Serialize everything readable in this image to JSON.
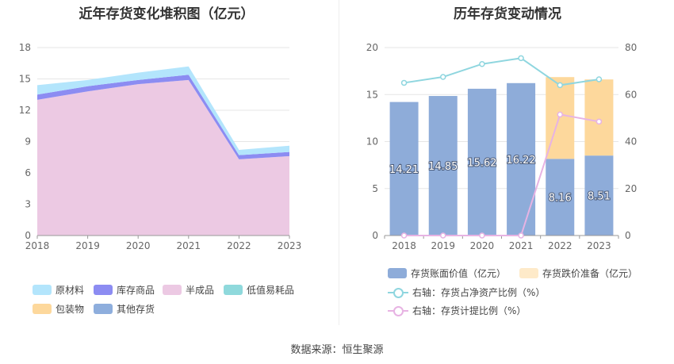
{
  "footer": {
    "source": "数据来源：恒生聚源"
  },
  "colors": {
    "raw_material": "#b3e5fc",
    "inventory_goods": "#8c8cf2",
    "semi_finished": "#ecc9e3",
    "low_value": "#8fd9dc",
    "packaging": "#fdd89c",
    "other_inventory": "#8eaedd",
    "book_value_bar": "#8eacd9",
    "impairment_bar": "#fdd89c",
    "ratio_line": "#8fd6df",
    "provision_line": "#e7b3e3"
  },
  "chart_data": [
    {
      "id": "left",
      "type": "area",
      "title": "近年存货变化堆积图（亿元）",
      "x": [
        "2018",
        "2019",
        "2020",
        "2021",
        "2022",
        "2023"
      ],
      "ylim": [
        0,
        18
      ],
      "yticks": [
        "0",
        "3",
        "6",
        "9",
        "12",
        "15",
        "18"
      ],
      "grid": true,
      "series": [
        {
          "name": "半成品",
          "key": "semi_finished",
          "values": [
            13.0,
            13.8,
            14.5,
            14.9,
            7.3,
            7.6
          ]
        },
        {
          "name": "库存商品",
          "key": "inventory_goods",
          "values": [
            0.5,
            0.5,
            0.4,
            0.5,
            0.4,
            0.4
          ]
        },
        {
          "name": "原材料",
          "key": "raw_material",
          "values": [
            0.9,
            0.6,
            0.7,
            0.8,
            0.5,
            0.6
          ]
        },
        {
          "name": "低值易耗品",
          "key": "low_value",
          "values": [
            0.0,
            0.0,
            0.0,
            0.0,
            0.0,
            0.0
          ]
        },
        {
          "name": "包装物",
          "key": "packaging",
          "values": [
            0.0,
            0.0,
            0.0,
            0.0,
            0.0,
            0.0
          ]
        },
        {
          "name": "其他存货",
          "key": "other_inventory",
          "values": [
            0.0,
            0.0,
            0.0,
            0.0,
            0.0,
            0.0
          ]
        }
      ],
      "legend": [
        {
          "label": "原材料",
          "key": "raw_material"
        },
        {
          "label": "库存商品",
          "key": "inventory_goods"
        },
        {
          "label": "半成品",
          "key": "semi_finished"
        },
        {
          "label": "低值易耗品",
          "key": "low_value"
        },
        {
          "label": "包装物",
          "key": "packaging"
        },
        {
          "label": "其他存货",
          "key": "other_inventory"
        }
      ]
    },
    {
      "id": "right",
      "type": "bar",
      "title": "历年存货变动情况",
      "categories": [
        "2018",
        "2019",
        "2020",
        "2021",
        "2022",
        "2023"
      ],
      "ylim": [
        0,
        20
      ],
      "yticks": [
        "0",
        "5",
        "10",
        "15",
        "20"
      ],
      "y2lim": [
        0,
        80
      ],
      "y2ticks": [
        "0",
        "20",
        "40",
        "60",
        "80"
      ],
      "grid": true,
      "series": [
        {
          "name": "存货账面价值（亿元）",
          "kind": "bar",
          "key": "book_value_bar",
          "values": [
            14.21,
            14.85,
            15.62,
            16.22,
            8.16,
            8.51
          ],
          "labels": [
            "14.21",
            "14.85",
            "15.62",
            "16.22",
            "8.16",
            "8.51"
          ]
        },
        {
          "name": "存货跌价准备（亿元）",
          "kind": "bar-stack",
          "key": "impairment_bar",
          "values": [
            0,
            0,
            0,
            0,
            8.7,
            8.1
          ]
        },
        {
          "name": "右轴：存货占净资产比例（%）",
          "kind": "line",
          "axis": "right",
          "key": "ratio_line",
          "values": [
            65,
            67.5,
            73,
            75.5,
            64,
            66.5
          ]
        },
        {
          "name": "右轴：存货计提比例（%）",
          "kind": "line",
          "axis": "right",
          "key": "provision_line",
          "values": [
            0,
            0,
            0,
            0,
            51.5,
            48.5
          ]
        }
      ]
    }
  ]
}
